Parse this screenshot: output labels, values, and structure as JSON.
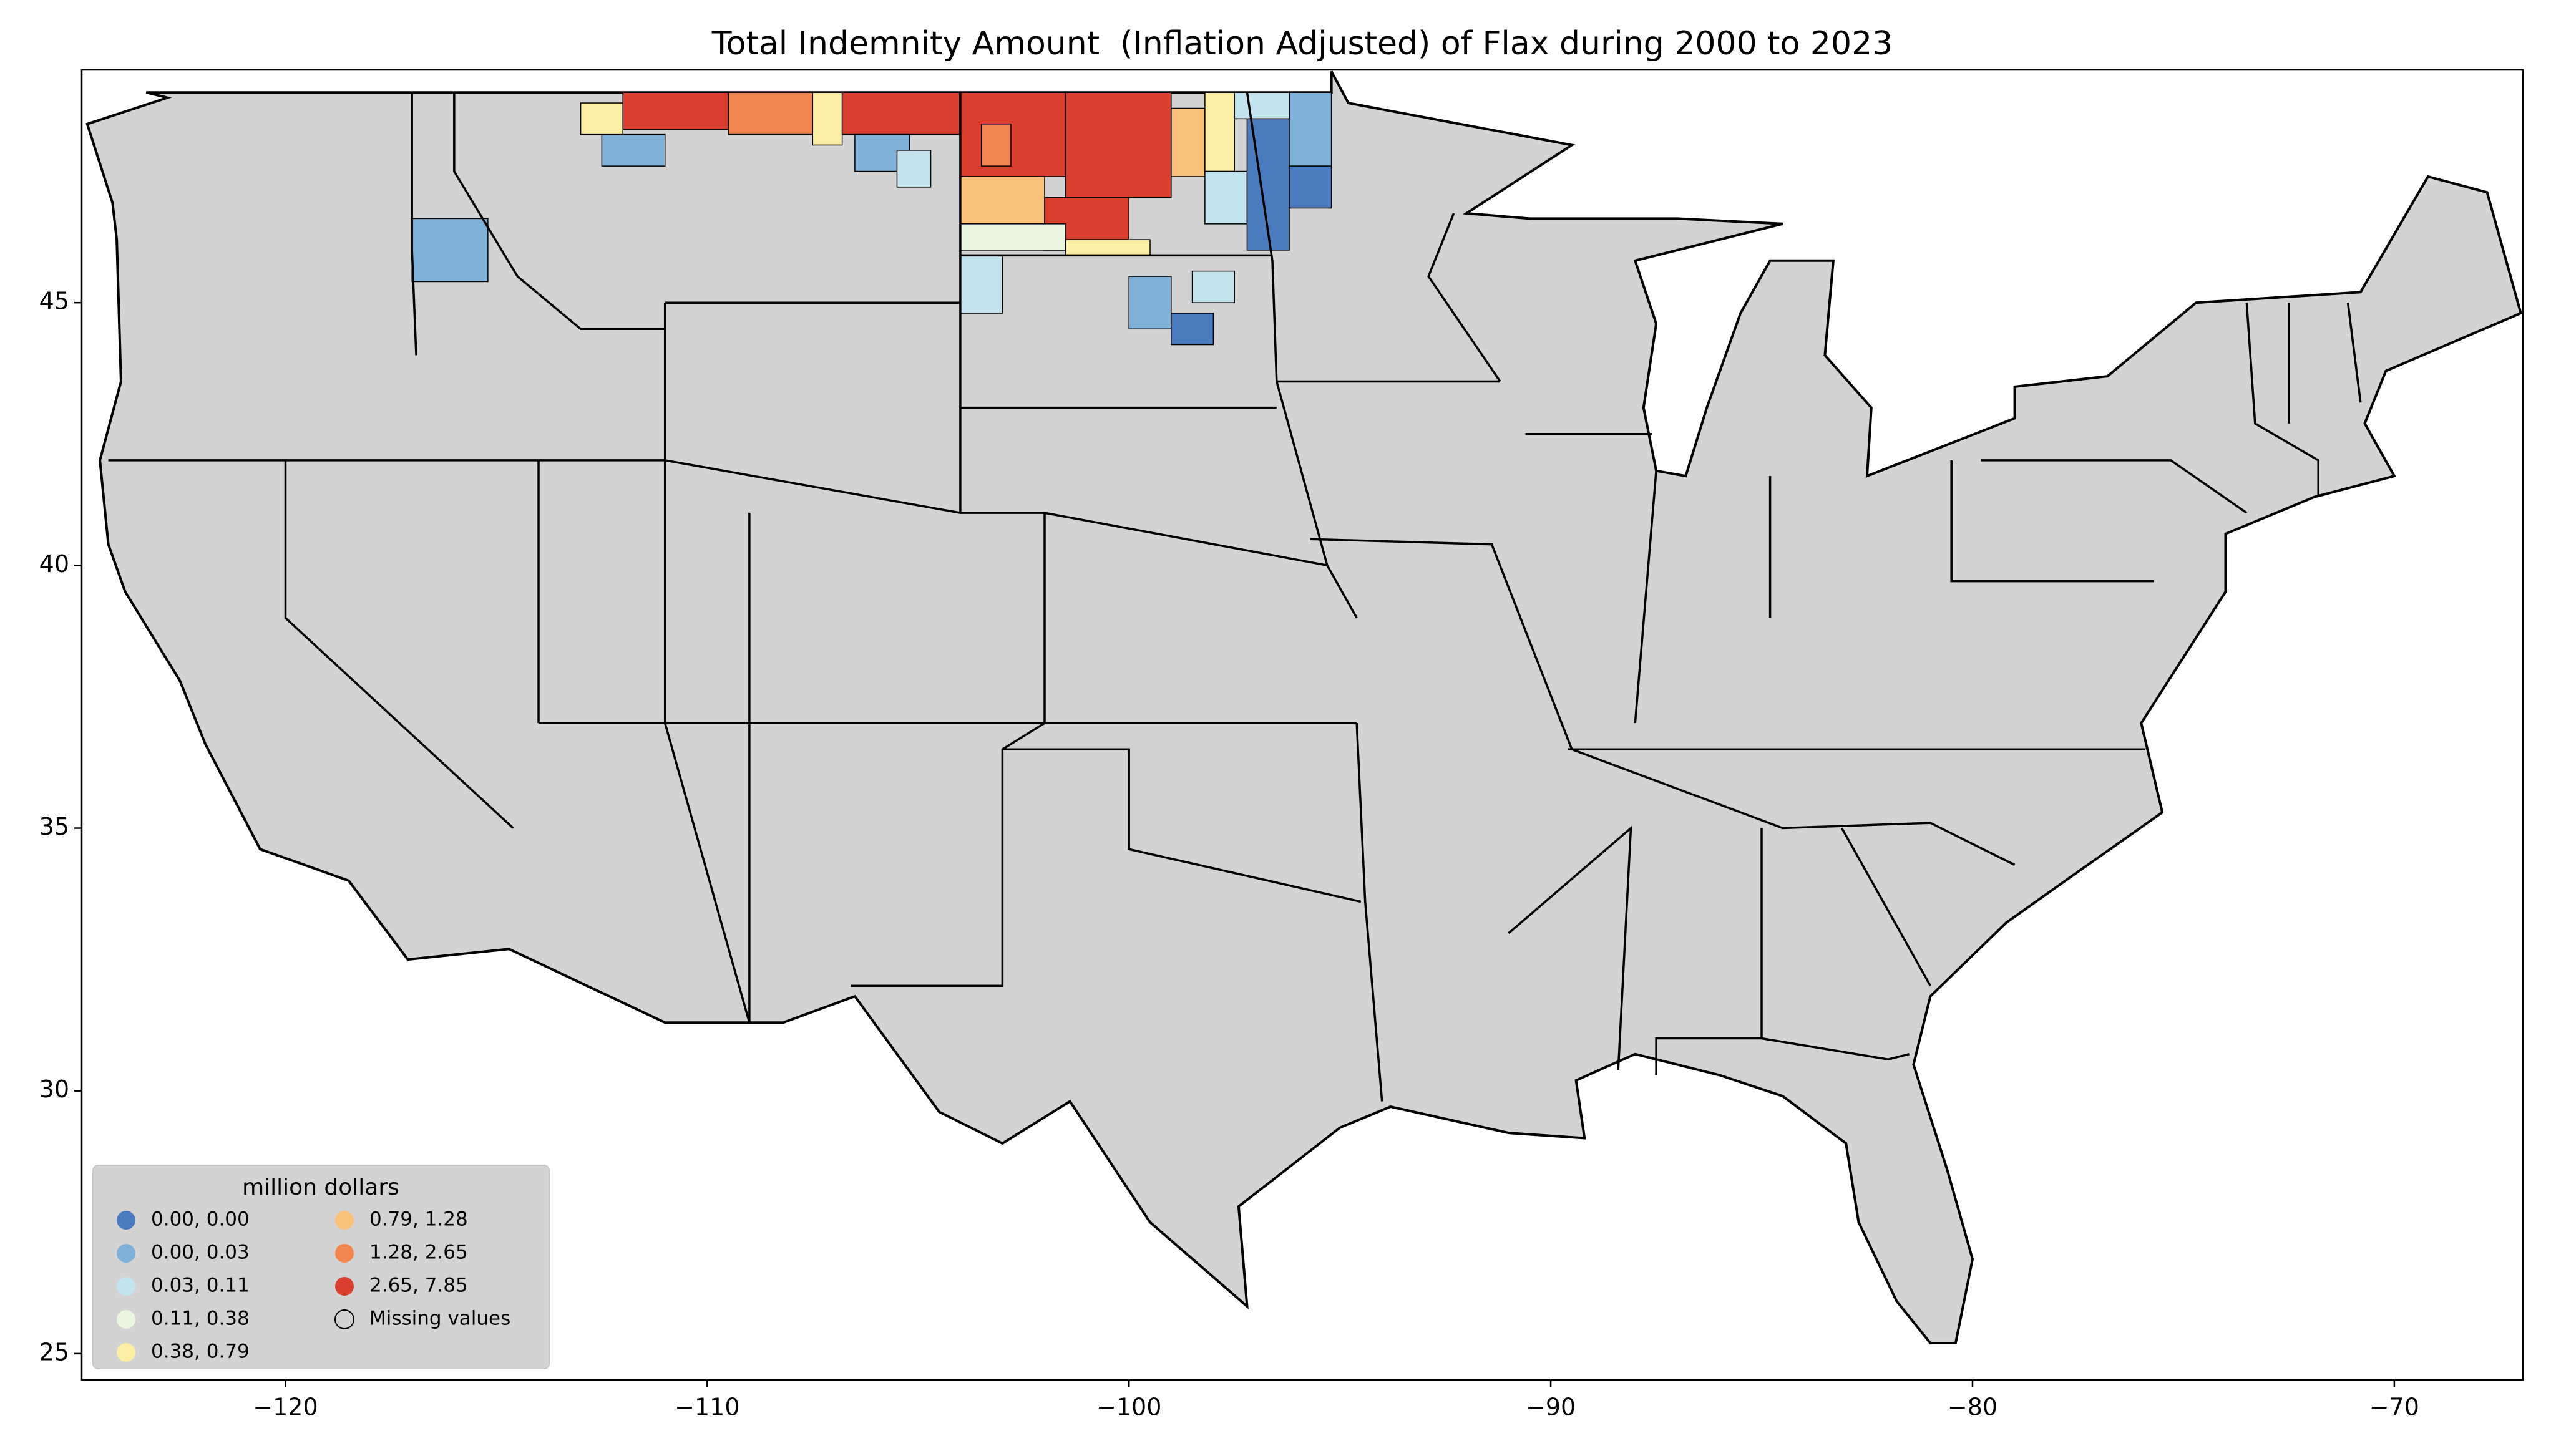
{
  "chart_data": {
    "type": "map",
    "title": "Total Indemnity Amount  (Inflation Adjusted) of Flax during 2000 to 2023",
    "xlim": [
      -124.83,
      -66.95
    ],
    "ylim": [
      24.5,
      49.43
    ],
    "xticks": [
      {
        "value": -120,
        "label": "−120"
      },
      {
        "value": -110,
        "label": "−110"
      },
      {
        "value": -100,
        "label": "−100"
      },
      {
        "value": -90,
        "label": "−90"
      },
      {
        "value": -80,
        "label": "−80"
      },
      {
        "value": -70,
        "label": "−70"
      }
    ],
    "yticks": [
      25,
      30,
      35,
      40,
      45
    ],
    "background_color": "#d3d3d3",
    "legend": {
      "title": "million dollars",
      "loc": "lower left",
      "entries": [
        {
          "label": "0.00, 0.00",
          "color": "#4a7bbf"
        },
        {
          "label": "0.00, 0.03",
          "color": "#7fb1d8"
        },
        {
          "label": "0.03, 0.11",
          "color": "#c3e3ef"
        },
        {
          "label": "0.11, 0.38",
          "color": "#eaf6e0"
        },
        {
          "label": "0.38, 0.79",
          "color": "#fdeea5"
        },
        {
          "label": "0.79, 1.28",
          "color": "#f9c17a"
        },
        {
          "label": "1.28, 2.65",
          "color": "#f1844f"
        },
        {
          "label": "2.65, 7.85",
          "color": "#d93e2f"
        },
        {
          "label": "Missing values",
          "color": "none"
        }
      ]
    }
  }
}
